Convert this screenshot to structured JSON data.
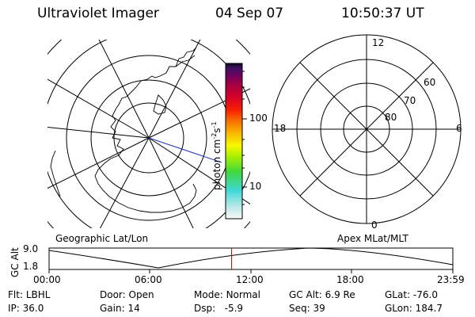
{
  "header": {
    "instrument": "Ultraviolet Imager",
    "date": "04 Sep 07",
    "time": "10:50:37 UT"
  },
  "colorbar": {
    "unit_label": "photon cm",
    "unit_exp1": "-2",
    "unit_mid": "s",
    "unit_exp2": "-1",
    "ticks": [
      "100",
      "10"
    ],
    "stops": [
      "#f8f8f8",
      "#b8e8e8",
      "#40d8d8",
      "#40d840",
      "#a8f000",
      "#f8f800",
      "#f8b800",
      "#f87800",
      "#f82000",
      "#d80028",
      "#a80040",
      "#700060",
      "#401060",
      "#100828"
    ]
  },
  "map_geo": {
    "label": "Geographic Lat/Lon"
  },
  "map_mag": {
    "label": "Apex MLat/MLT",
    "mlt_labels": {
      "top": "12",
      "bottom": "0",
      "left": "18",
      "right": "6"
    },
    "lat_labels": [
      "60",
      "70",
      "80"
    ]
  },
  "altitude_plot": {
    "ylabel": "GC Alt",
    "yticks": [
      "9.0",
      "1.8"
    ],
    "xticks": [
      "00:00",
      "06:00",
      "12:00",
      "18:00",
      "23:59"
    ],
    "current_time_fraction": 0.452,
    "curve_color": "#000000",
    "marker_color": "#e00000"
  },
  "status": {
    "row1": [
      {
        "label": "Flt:",
        "value": "LBHL"
      },
      {
        "label": "Door:",
        "value": "Open"
      },
      {
        "label": "Mode:",
        "value": "Normal"
      },
      {
        "label": "GC Alt:",
        "value": "6.9 Re"
      },
      {
        "label": "GLat:",
        "value": "-76.0"
      }
    ],
    "row2": [
      {
        "label": "IP:",
        "value": "36.0"
      },
      {
        "label": "Gain:",
        "value": "14"
      },
      {
        "label": "Dsp:",
        "value": "  -5.9"
      },
      {
        "label": "Seq:",
        "value": "39"
      },
      {
        "label": "GLon:",
        "value": "184.7"
      }
    ]
  }
}
